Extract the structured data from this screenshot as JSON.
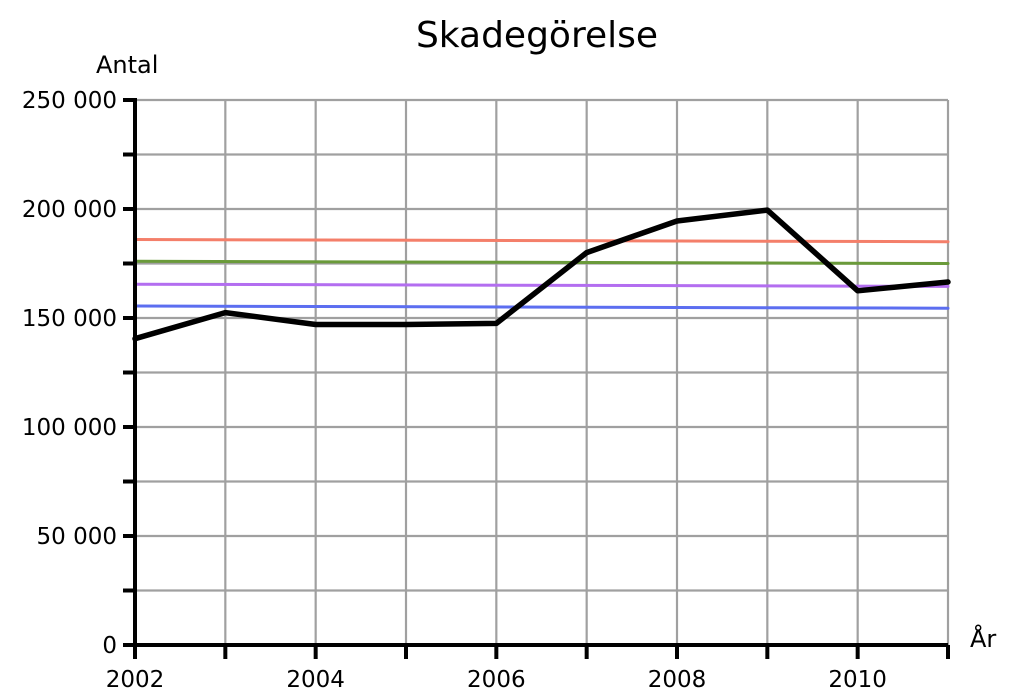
{
  "chart_data": {
    "type": "line",
    "title": "Skadegörelse",
    "xlabel": "År",
    "ylabel": "Antal",
    "xlim": [
      2002,
      2011
    ],
    "ylim": [
      0,
      250000
    ],
    "x_ticks": [
      2002,
      2004,
      2006,
      2008,
      2010
    ],
    "x_tick_labels": [
      "2002",
      "2004",
      "2006",
      "2008",
      "2010"
    ],
    "y_ticks": [
      0,
      50000,
      100000,
      150000,
      200000,
      250000
    ],
    "y_tick_labels": [
      "0",
      "50 000",
      "100 000",
      "150 000",
      "200 000",
      "250 000"
    ],
    "grid": true,
    "legend": "none",
    "series": [
      {
        "color": "#000000",
        "x": [
          2002,
          2003,
          2004,
          2005,
          2006,
          2007,
          2008,
          2009,
          2010,
          2011
        ],
        "values": [
          140500,
          152500,
          147000,
          147000,
          147500,
          180000,
          194500,
          199500,
          162500,
          166500
        ]
      },
      {
        "color": "#f47f6a",
        "x": [
          2002,
          2011
        ],
        "values": [
          186000,
          185000
        ]
      },
      {
        "color": "#6a9a3a",
        "x": [
          2002,
          2011
        ],
        "values": [
          176000,
          175000
        ]
      },
      {
        "color": "#b36ef0",
        "x": [
          2002,
          2011
        ],
        "values": [
          165500,
          164500
        ]
      },
      {
        "color": "#5c6ef0",
        "x": [
          2002,
          2011
        ],
        "values": [
          155500,
          154500
        ]
      }
    ]
  }
}
